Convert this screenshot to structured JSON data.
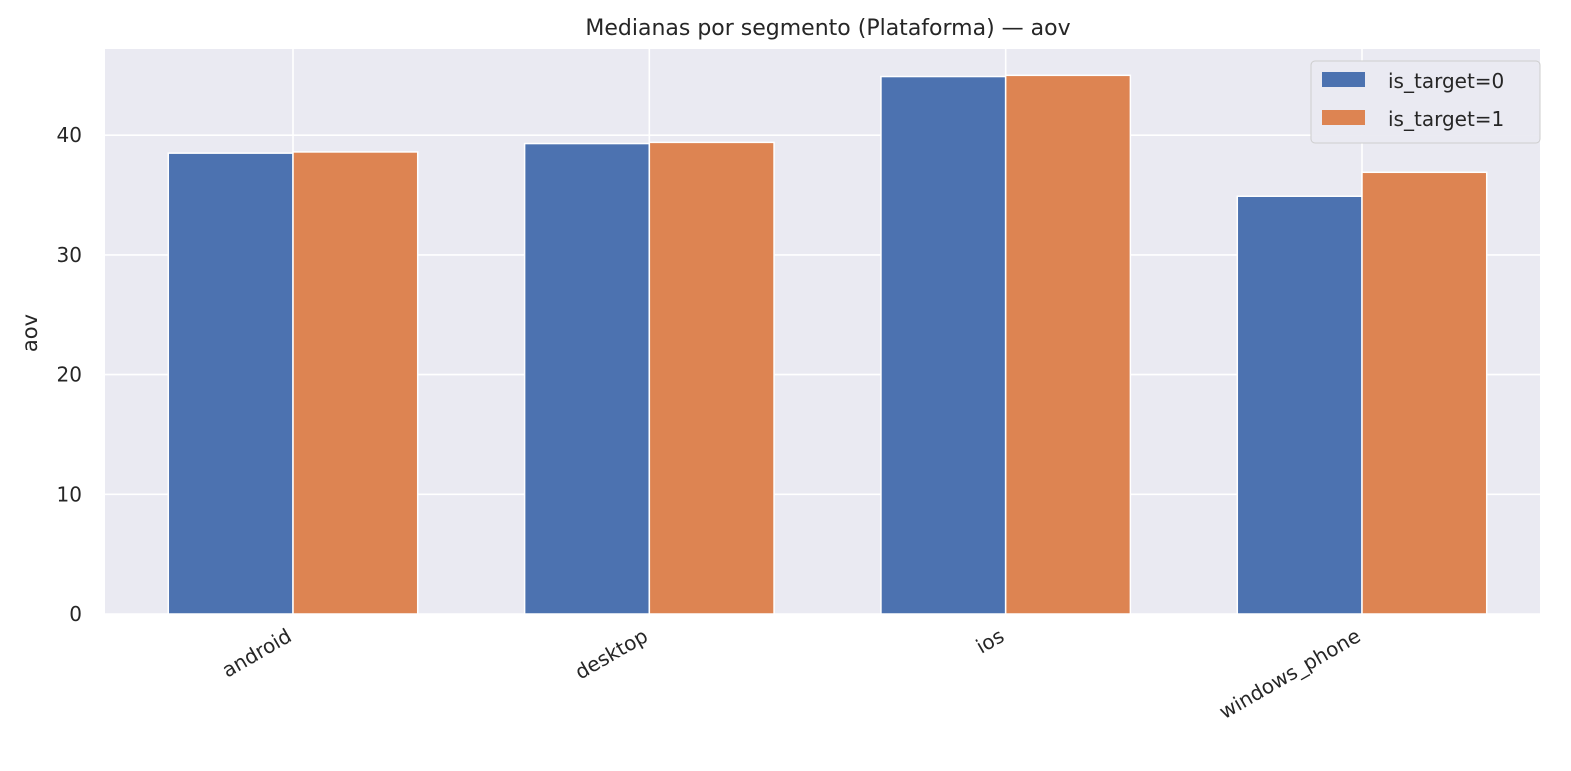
{
  "chart_data": {
    "type": "bar",
    "title": "Medianas por segmento (Plataforma) — aov",
    "xlabel": "",
    "ylabel": "aov",
    "categories": [
      "android",
      "desktop",
      "ios",
      "windows_phone"
    ],
    "series": [
      {
        "name": "is_target=0",
        "color": "#4c72b0",
        "values": [
          38.5,
          39.3,
          44.9,
          34.9
        ]
      },
      {
        "name": "is_target=1",
        "color": "#dd8452",
        "values": [
          38.6,
          39.4,
          45.0,
          36.9
        ]
      }
    ],
    "ylim": [
      0,
      47.2
    ],
    "yticks": [
      0,
      10,
      20,
      30,
      40
    ],
    "grid": true,
    "legend_position": "top-right"
  }
}
